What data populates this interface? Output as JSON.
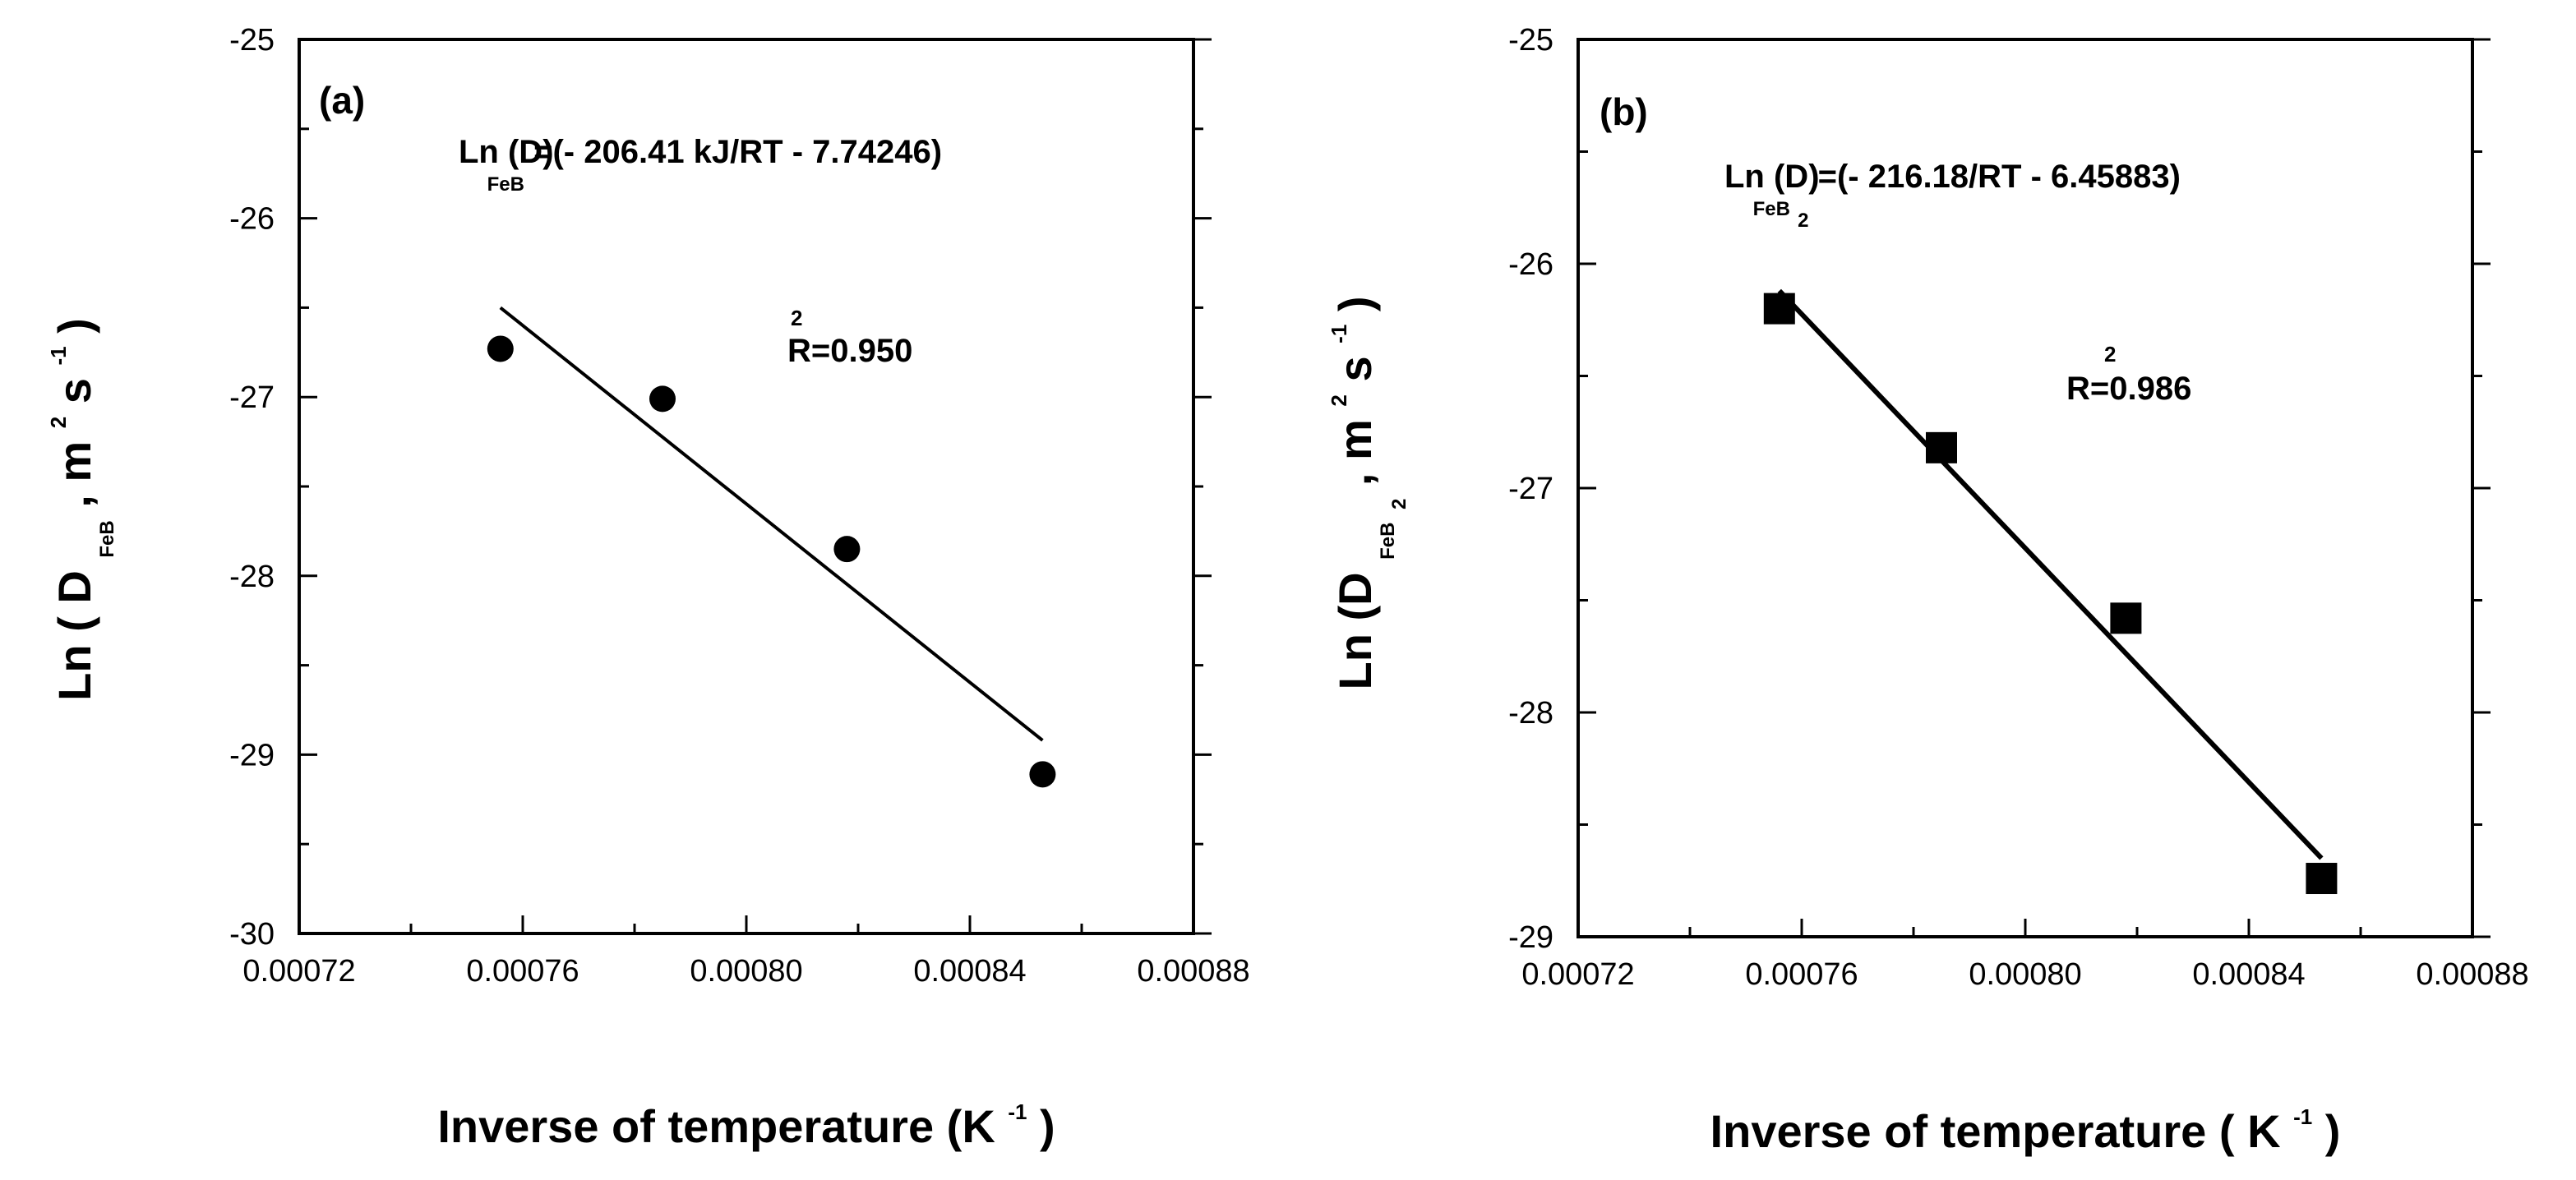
{
  "chart_data": [
    {
      "id": "a",
      "type": "scatter",
      "panel_label": "(a)",
      "x_ticks": [
        "0.00072",
        "0.00076",
        "0.00080",
        "0.00084",
        "0.00088"
      ],
      "y_ticks": [
        "-25",
        "-26",
        "-27",
        "-28",
        "-29",
        "-30"
      ],
      "xlim": [
        0.00072,
        0.00088
      ],
      "ylim": [
        -30,
        -25
      ],
      "x_tick_values": [
        0.00072,
        0.00076,
        0.0008,
        0.00084,
        0.00088
      ],
      "y_tick_values": [
        -25,
        -26,
        -27,
        -28,
        -29,
        -30
      ],
      "x": [
        0.000756,
        0.000785,
        0.000818,
        0.000853
      ],
      "y": [
        -26.73,
        -27.01,
        -27.85,
        -29.11
      ],
      "fit_line": {
        "x": [
          0.000756,
          0.000853
        ],
        "y": [
          -26.5,
          -28.92
        ]
      },
      "marker": "circle",
      "xlabel_main": "Inverse of temperature (K",
      "xlabel_sup": "-1",
      "xlabel_close": ")",
      "ylabel_main": "Ln ( D",
      "ylabel_sub": "FeB",
      "ylabel_units": ", m",
      "ylabel_sup1": "2",
      "ylabel_s": "s",
      "ylabel_sup2": "-1",
      "ylabel_close": ")",
      "equation_prefix": "Ln (D)",
      "equation_sub": "FeB",
      "equation_body": "=(- 206.41 kJ/RT - 7.74246)",
      "r2_sup": "2",
      "r2_text": "R=0.950"
    },
    {
      "id": "b",
      "type": "scatter",
      "panel_label": "(b)",
      "x_ticks": [
        "0.00072",
        "0.00076",
        "0.00080",
        "0.00084",
        "0.00088"
      ],
      "y_ticks": [
        "-25",
        "-26",
        "-27",
        "-28",
        "-29"
      ],
      "xlim": [
        0.00072,
        0.00088
      ],
      "ylim": [
        -29,
        -25
      ],
      "x_tick_values": [
        0.00072,
        0.00076,
        0.0008,
        0.00084,
        0.00088
      ],
      "y_tick_values": [
        -25,
        -26,
        -27,
        -28,
        -29
      ],
      "x": [
        0.000756,
        0.000785,
        0.000818,
        0.000853
      ],
      "y": [
        -26.2,
        -26.82,
        -27.58,
        -28.74
      ],
      "fit_line": {
        "x": [
          0.000756,
          0.000853
        ],
        "y": [
          -26.12,
          -28.65
        ]
      },
      "marker": "square",
      "xlabel_main": "Inverse of temperature ( K",
      "xlabel_sup": "-1",
      "xlabel_close": ")",
      "ylabel_main": "Ln (D",
      "ylabel_sub": "FeB",
      "ylabel_sub2": "2",
      "ylabel_units": ", m",
      "ylabel_sup1": "2",
      "ylabel_s": "s",
      "ylabel_sup2": "-1",
      "ylabel_close": ")",
      "equation_prefix": "Ln (D)",
      "equation_sub": "FeB",
      "equation_sub2": "2",
      "equation_body": "=(- 216.18/RT - 6.45883)",
      "r2_sup": "2",
      "r2_text": "R=0.986"
    }
  ]
}
